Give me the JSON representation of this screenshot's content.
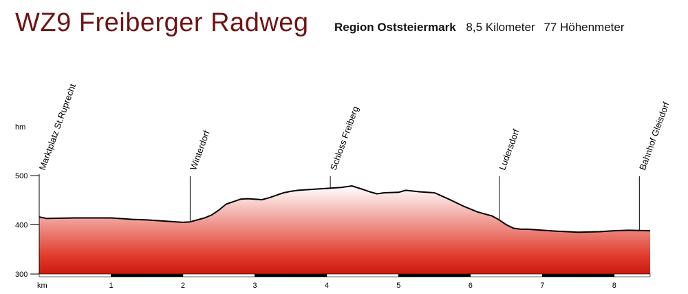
{
  "header": {
    "title": "WZ9 Freiberger Radweg",
    "region": "Region Oststeiermark",
    "distance": "8,5 Kilometer",
    "ascent": "77 Höhenmeter"
  },
  "chart_data": {
    "type": "area",
    "title": "WZ9 Freiberger Radweg",
    "ylabel": "hm",
    "xlabel": "km",
    "xlim": [
      0,
      8.5
    ],
    "ylim": [
      300,
      500
    ],
    "y_ticks": [
      "300",
      "400",
      "500"
    ],
    "x_ticks": [
      "1",
      "2",
      "3",
      "4",
      "5",
      "6",
      "7",
      "8"
    ],
    "x": [
      0,
      0.1,
      0.5,
      1,
      1.3,
      1.5,
      1.8,
      2,
      2.1,
      2.2,
      2.3,
      2.4,
      2.5,
      2.6,
      2.7,
      2.8,
      2.9,
      3.0,
      3.1,
      3.2,
      3.3,
      3.4,
      3.5,
      3.6,
      3.8,
      4.0,
      4.2,
      4.35,
      4.5,
      4.6,
      4.7,
      4.8,
      5.0,
      5.1,
      5.3,
      5.5,
      5.7,
      5.9,
      6.1,
      6.2,
      6.3,
      6.4,
      6.5,
      6.6,
      6.7,
      6.8,
      7.0,
      7.2,
      7.5,
      7.8,
      8.0,
      8.2,
      8.5
    ],
    "values": [
      416,
      413,
      414,
      414,
      411,
      410,
      407,
      405,
      406,
      410,
      414,
      420,
      430,
      442,
      447,
      452,
      453,
      452,
      451,
      455,
      460,
      465,
      468,
      470,
      472,
      474,
      476,
      479,
      472,
      467,
      463,
      465,
      466,
      470,
      467,
      465,
      452,
      438,
      426,
      422,
      418,
      410,
      400,
      393,
      391,
      391,
      389,
      387,
      385,
      386,
      388,
      389,
      388
    ],
    "line_color": "#000000",
    "fill_colors": [
      "#ffffff",
      "#e03a2b",
      "#cc1a10"
    ],
    "waypoints": [
      {
        "label": "Marktplatz St.Ruprecht",
        "km": 0.0
      },
      {
        "label": "Winterdorf",
        "km": 2.1
      },
      {
        "label": "Schloss Freiberg",
        "km": 4.05
      },
      {
        "label": "Ludersdorf",
        "km": 6.4
      },
      {
        "label": "Bahnhof Gleisdorf",
        "km": 8.35
      }
    ],
    "grid": false,
    "legend": "none"
  }
}
